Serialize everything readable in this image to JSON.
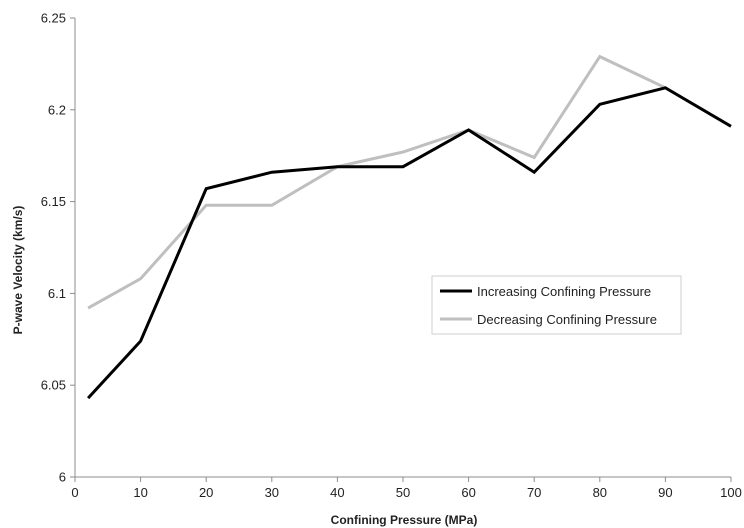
{
  "chart_data": {
    "type": "line",
    "title": "",
    "xlabel": "Confining Pressure (MPa)",
    "ylabel": "P-wave Velocity (km/s)",
    "xlim": [
      0,
      100
    ],
    "ylim": [
      6,
      6.25
    ],
    "x_ticks": [
      "0",
      "10",
      "20",
      "30",
      "40",
      "50",
      "60",
      "70",
      "80",
      "90",
      "100"
    ],
    "y_ticks": [
      "6",
      "6.05",
      "6.1",
      "6.15",
      "6.2",
      "6.25"
    ],
    "grid": false,
    "legend_position": "right",
    "series": [
      {
        "name": "Increasing Confining Pressure",
        "color": "#000000",
        "x": [
          2,
          10,
          20,
          30,
          40,
          50,
          60,
          70,
          80,
          90,
          100
        ],
        "y": [
          6.043,
          6.074,
          6.157,
          6.166,
          6.169,
          6.169,
          6.189,
          6.166,
          6.203,
          6.212,
          6.191
        ]
      },
      {
        "name": "Decreasing Confining Pressure",
        "color": "#bfbfbf",
        "x": [
          2,
          10,
          20,
          30,
          40,
          50,
          60,
          70,
          80,
          90
        ],
        "y": [
          6.092,
          6.108,
          6.148,
          6.148,
          6.169,
          6.177,
          6.189,
          6.174,
          6.229,
          6.212
        ]
      }
    ]
  }
}
